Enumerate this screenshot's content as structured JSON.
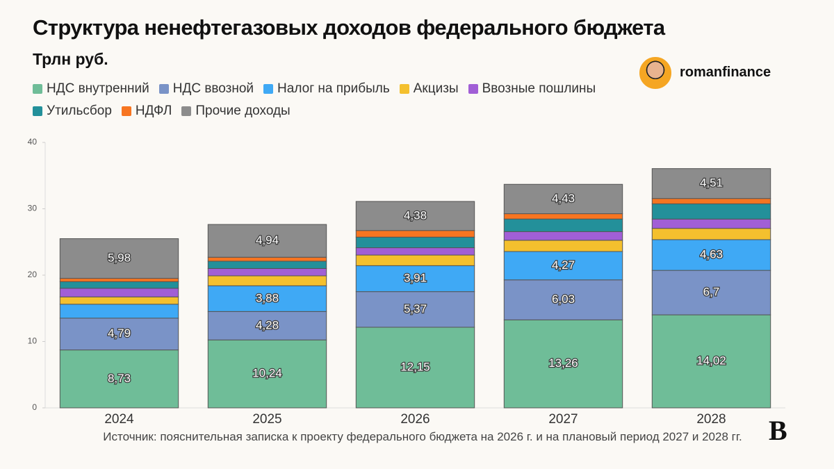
{
  "chart_data": {
    "type": "stacked_bar",
    "title": "Структура ненефтегазовых доходов федерального бюджета",
    "subtitle": "Трлн руб.",
    "brand": "romanfinance",
    "source": "Источник: пояснительная записка к проекту федерального бюджета на 2026 г. и на плановый период 2027 и 2028 гг.",
    "logo": "В",
    "categories": [
      "2024",
      "2025",
      "2026",
      "2027",
      "2028"
    ],
    "ylim": [
      0,
      40
    ],
    "yticks": [
      0,
      10,
      20,
      30,
      40
    ],
    "grid": false,
    "legend": "top",
    "series": [
      {
        "name": "НДС внутренний",
        "color": "#6fbd98",
        "values": [
          8.73,
          10.24,
          12.15,
          13.26,
          14.02
        ],
        "value_labels": [
          "8,73",
          "10,24",
          "12,15",
          "13,26",
          "14,02"
        ]
      },
      {
        "name": "НДС ввозной",
        "color": "#7a93c7",
        "values": [
          4.79,
          4.28,
          5.37,
          6.03,
          6.7
        ],
        "value_labels": [
          "4,79",
          "4,28",
          "5,37",
          "6,03",
          "6,7"
        ]
      },
      {
        "name": "Налог на прибыль",
        "color": "#3fa9f5",
        "values": [
          2.1,
          3.88,
          3.91,
          4.27,
          4.63
        ],
        "value_labels": [
          null,
          "3,88",
          "3,91",
          "4,27",
          "4,63"
        ]
      },
      {
        "name": "Акцизы",
        "color": "#f4c02e",
        "values": [
          1.1,
          1.5,
          1.6,
          1.7,
          1.7
        ]
      },
      {
        "name": "Ввозные пошлины",
        "color": "#a15fd6",
        "values": [
          1.3,
          1.1,
          1.1,
          1.3,
          1.4
        ]
      },
      {
        "name": "Утильсбор",
        "color": "#23909a",
        "values": [
          1.0,
          1.1,
          1.6,
          1.9,
          2.3
        ]
      },
      {
        "name": "НДФЛ",
        "color": "#f77521",
        "values": [
          0.5,
          0.6,
          1.0,
          0.8,
          0.8
        ]
      },
      {
        "name": "Прочие доходы",
        "color": "#8c8c8c",
        "values": [
          5.98,
          4.94,
          4.38,
          4.43,
          4.51
        ],
        "value_labels": [
          "5,98",
          "4,94",
          "4,38",
          "4,43",
          "4,51"
        ]
      }
    ]
  }
}
